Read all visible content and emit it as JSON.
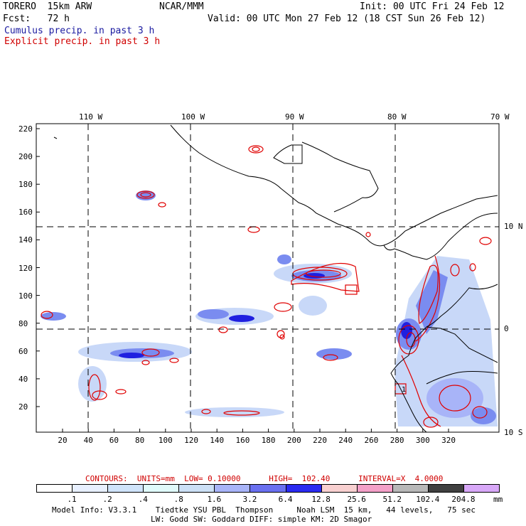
{
  "header": {
    "model": "TORERO  15km ARW",
    "org": "NCAR/MMM",
    "init": "Init: 00 UTC Fri 24 Feb 12",
    "fcst": "Fcst:   72 h",
    "valid": "Valid: 00 UTC Mon 27 Feb 12 (18 CST Sun 26 Feb 12)",
    "line_cumulus": "Cumulus precip. in past 3 h",
    "line_explicit": "Explicit precip. in past 3 h"
  },
  "map": {
    "lon_labels": [
      "110 W",
      "100 W",
      "90 W",
      "80 W",
      "70 W"
    ],
    "lat_labels_right": [
      "10 N",
      "0",
      "10 S"
    ],
    "y_ticks": [
      "220",
      "200",
      "180",
      "160",
      "140",
      "120",
      "100",
      "80",
      "60",
      "40",
      "20"
    ],
    "x_ticks": [
      "20",
      "40",
      "60",
      "80",
      "100",
      "120",
      "140",
      "160",
      "180",
      "200",
      "220",
      "240",
      "260",
      "280",
      "300",
      "320"
    ],
    "box_label": "1",
    "colors": {
      "cumulus_light": "#c8d8f8",
      "cumulus_mid": "#7a8cf0",
      "cumulus_dark": "#2020e0",
      "explicit_contour": "#e00000",
      "coastline": "#000000"
    }
  },
  "legend": {
    "contours_line": "CONTOURS:  UNITS=mm  LOW= 0.10000      HIGH=  102.40      INTERVAL=X  4.0000",
    "levels": [
      ".1",
      ".2",
      ".4",
      ".8",
      "1.6",
      "3.2",
      "6.4",
      "12.8",
      "25.6",
      "51.2",
      "102.4",
      "204.8"
    ],
    "unit": "mm",
    "colors": [
      "#ffffff",
      "#e8f0ff",
      "#d0e4fa",
      "#e0fafa",
      "#cce0f6",
      "#a8b4f8",
      "#6a70f0",
      "#2a2af0",
      "#f8d0d0",
      "#f4a0c8",
      "#b8b8b8",
      "#404040",
      "#d8a8f8"
    ]
  },
  "footer": {
    "line1": "Model Info: V3.3.1    Tiedtke YSU PBL  Thompson     Noah LSM  15 km,   44 levels,   75 sec",
    "line2": "LW: Godd SW: Goddard DIFF: simple KM: 2D Smagor"
  }
}
